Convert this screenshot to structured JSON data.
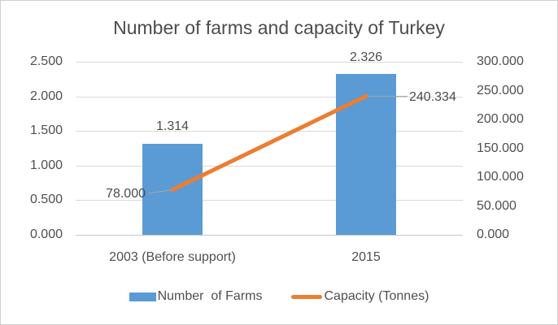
{
  "chart_data": {
    "type": "combo",
    "title": "Number of farms and capacity of Turkey",
    "categories": [
      "2003 (Before support)",
      "2015"
    ],
    "series": [
      {
        "name": "Number  of Farms",
        "chart_type": "bar",
        "axis": "left",
        "values": [
          1314,
          2326
        ],
        "data_labels": [
          "1.314",
          "2.326"
        ],
        "color": "#5b9bd5"
      },
      {
        "name": "Capacity (Tonnes)",
        "chart_type": "line",
        "axis": "right",
        "values": [
          78000,
          240334
        ],
        "data_labels": [
          "78.000",
          "240.334"
        ],
        "color": "#ed7d31"
      }
    ],
    "left_axis": {
      "min": 0,
      "max": 2500,
      "tick_labels": [
        "0.000",
        "0.500",
        "1.000",
        "1.500",
        "2.000",
        "2.500"
      ]
    },
    "right_axis": {
      "min": 0,
      "max": 300000,
      "tick_labels": [
        "0.000",
        "50.000",
        "100.000",
        "150.000",
        "200.000",
        "250.000",
        "300.000"
      ]
    },
    "legend_position": "bottom",
    "grid": true,
    "colors": {
      "bar": "#5b9bd5",
      "line": "#ed7d31",
      "gridline": "#d9d9d9",
      "text": "#4f4f4f"
    }
  }
}
